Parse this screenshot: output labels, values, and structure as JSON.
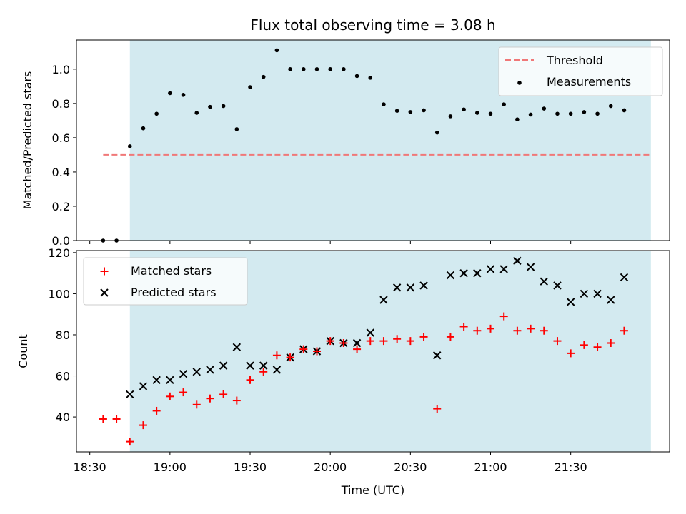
{
  "chart_data": [
    {
      "type": "scatter",
      "title": "Flux total observing time = 3.08 h",
      "xlabel": "",
      "ylabel": "Matched/Predicted stars",
      "xlim": [
        "18:25",
        "22:07"
      ],
      "ylim": [
        0,
        1.17
      ],
      "yticks": [
        0.0,
        0.2,
        0.4,
        0.6,
        0.8,
        1.0
      ],
      "ytick_labels": [
        "0.0",
        "0.2",
        "0.4",
        "0.6",
        "0.8",
        "1.0"
      ],
      "shaded_span": [
        "18:45",
        "22:00"
      ],
      "shaded_color": "#d3eaf0",
      "legend_position": "upper right",
      "threshold": {
        "name": "Threshold",
        "value": 0.5,
        "x_range": [
          "18:35",
          "22:00"
        ],
        "color": "#f07878"
      },
      "series": [
        {
          "name": "Measurements",
          "color": "#000000",
          "marker": "dot",
          "x": [
            "18:35",
            "18:40",
            "18:45",
            "18:50",
            "18:55",
            "19:00",
            "19:05",
            "19:10",
            "19:15",
            "19:20",
            "19:25",
            "19:30",
            "19:35",
            "19:40",
            "19:45",
            "19:50",
            "19:55",
            "20:00",
            "20:05",
            "20:10",
            "20:15",
            "20:20",
            "20:25",
            "20:30",
            "20:35",
            "20:40",
            "20:45",
            "20:50",
            "20:55",
            "21:00",
            "21:05",
            "21:10",
            "21:15",
            "21:20",
            "21:25",
            "21:30",
            "21:35",
            "21:40",
            "21:45",
            "21:50"
          ],
          "y": [
            0.0,
            0.0,
            0.55,
            0.655,
            0.74,
            0.86,
            0.85,
            0.745,
            0.78,
            0.785,
            0.65,
            0.895,
            0.955,
            1.11,
            1.0,
            1.0,
            1.0,
            1.0,
            1.0,
            0.96,
            0.95,
            0.795,
            0.757,
            0.75,
            0.76,
            0.63,
            0.725,
            0.765,
            0.745,
            0.74,
            0.795,
            0.707,
            0.735,
            0.77,
            0.74,
            0.74,
            0.75,
            0.74,
            0.785,
            0.76
          ]
        }
      ]
    },
    {
      "type": "scatter",
      "title": "",
      "xlabel": "Time (UTC)",
      "ylabel": "Count",
      "xlim": [
        "18:25",
        "22:07"
      ],
      "ylim": [
        23,
        121
      ],
      "yticks": [
        40,
        60,
        80,
        100,
        120
      ],
      "ytick_labels": [
        "40",
        "60",
        "80",
        "100",
        "120"
      ],
      "xticks": [
        "18:30",
        "19:00",
        "19:30",
        "20:00",
        "20:30",
        "21:00",
        "21:30"
      ],
      "shaded_span": [
        "18:45",
        "22:00"
      ],
      "shaded_color": "#d3eaf0",
      "legend_position": "upper left",
      "series": [
        {
          "name": "Matched stars",
          "color": "#ff0000",
          "marker": "plus",
          "x": [
            "18:35",
            "18:40",
            "18:45",
            "18:50",
            "18:55",
            "19:00",
            "19:05",
            "19:10",
            "19:15",
            "19:20",
            "19:25",
            "19:30",
            "19:35",
            "19:40",
            "19:45",
            "19:50",
            "19:55",
            "20:00",
            "20:05",
            "20:10",
            "20:15",
            "20:20",
            "20:25",
            "20:30",
            "20:35",
            "20:40",
            "20:45",
            "20:50",
            "20:55",
            "21:00",
            "21:05",
            "21:10",
            "21:15",
            "21:20",
            "21:25",
            "21:30",
            "21:35",
            "21:40",
            "21:45",
            "21:50"
          ],
          "y": [
            39,
            39,
            28,
            36,
            43,
            50,
            52,
            46,
            49,
            51,
            48,
            58,
            62,
            70,
            69,
            73,
            72,
            77,
            76,
            73,
            77,
            77,
            78,
            77,
            79,
            44,
            79,
            84,
            82,
            83,
            89,
            82,
            83,
            82,
            77,
            71,
            75,
            74,
            76,
            82
          ]
        },
        {
          "name": "Predicted stars",
          "color": "#000000",
          "marker": "x",
          "x": [
            "18:45",
            "18:50",
            "18:55",
            "19:00",
            "19:05",
            "19:10",
            "19:15",
            "19:20",
            "19:25",
            "19:30",
            "19:35",
            "19:40",
            "19:45",
            "19:50",
            "19:55",
            "20:00",
            "20:05",
            "20:10",
            "20:15",
            "20:20",
            "20:25",
            "20:30",
            "20:35",
            "20:40",
            "20:45",
            "20:50",
            "20:55",
            "21:00",
            "21:05",
            "21:10",
            "21:15",
            "21:20",
            "21:25",
            "21:30",
            "21:35",
            "21:40",
            "21:45",
            "21:50"
          ],
          "y": [
            51,
            55,
            58,
            58,
            61,
            62,
            63,
            65,
            74,
            65,
            65,
            63,
            69,
            73,
            72,
            77,
            76,
            76,
            81,
            97,
            103,
            103,
            104,
            70,
            109,
            110,
            110,
            112,
            112,
            116,
            113,
            106,
            104,
            96,
            100,
            100,
            97,
            108
          ]
        }
      ]
    }
  ]
}
